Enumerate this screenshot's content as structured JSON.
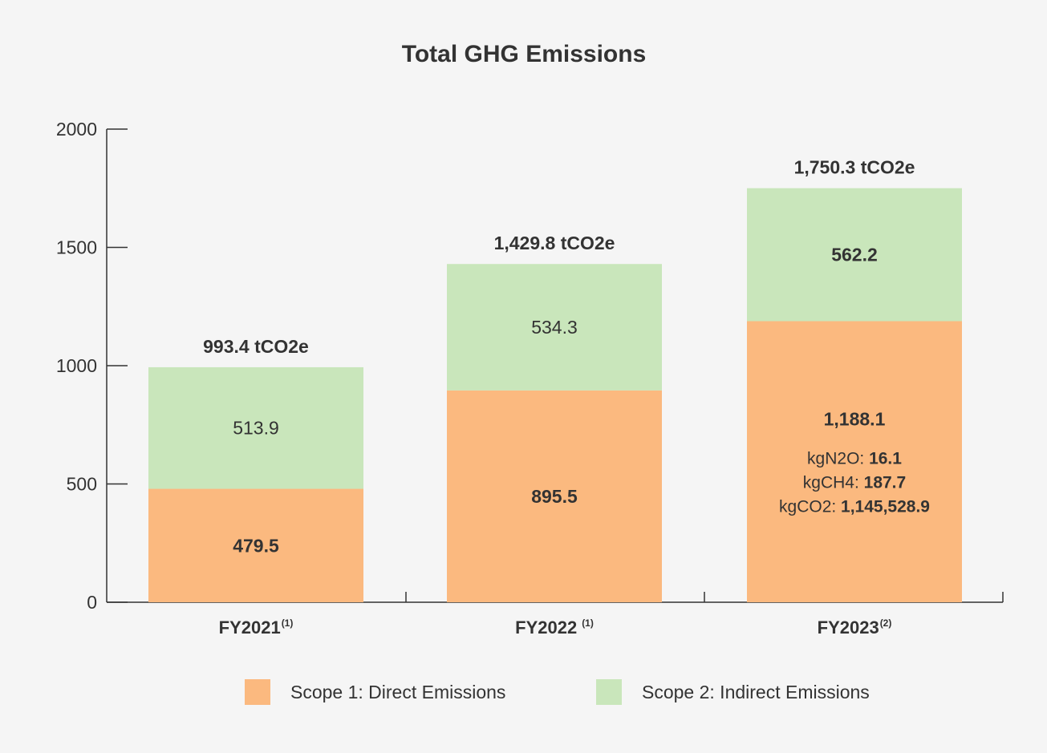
{
  "chart_data": {
    "type": "bar",
    "stacked": true,
    "title": "Total GHG Emissions",
    "xlabel": "",
    "ylabel": "",
    "ylim": [
      0,
      2000
    ],
    "yticks": [
      "0",
      "500",
      "1000",
      "1500",
      "2000"
    ],
    "ytick_values": [
      0,
      500,
      1000,
      1500,
      2000
    ],
    "grid": false,
    "legend_position": "bottom",
    "categories": [
      "FY2021",
      "FY2022",
      "FY2023"
    ],
    "category_notes": [
      "(1)",
      "(1)",
      "(2)"
    ],
    "series": [
      {
        "name": "Scope 1: Direct Emissions",
        "color": "#fbb97f",
        "values": [
          479.5,
          895.5,
          1188.1
        ],
        "labels": [
          "479.5",
          "895.5",
          "1,188.1"
        ]
      },
      {
        "name": "Scope 2: Indirect Emissions",
        "color": "#c9e6bb",
        "values": [
          513.9,
          534.3,
          562.2
        ],
        "labels": [
          "513.9",
          "534.3",
          "562.2"
        ]
      }
    ],
    "totals": [
      993.4,
      1429.8,
      1750.3
    ],
    "total_labels": [
      "993.4 tCO2e",
      "1,429.8 tCO2e",
      "1,750.3 tCO2e"
    ],
    "annotations": [
      {
        "category": "FY2023",
        "lines": [
          {
            "label": "kgN2O: ",
            "value": "16.1"
          },
          {
            "label": "kgCH4: ",
            "value": "187.7"
          },
          {
            "label": "kgCO2: ",
            "value": "1,145,528.9"
          }
        ]
      }
    ]
  }
}
